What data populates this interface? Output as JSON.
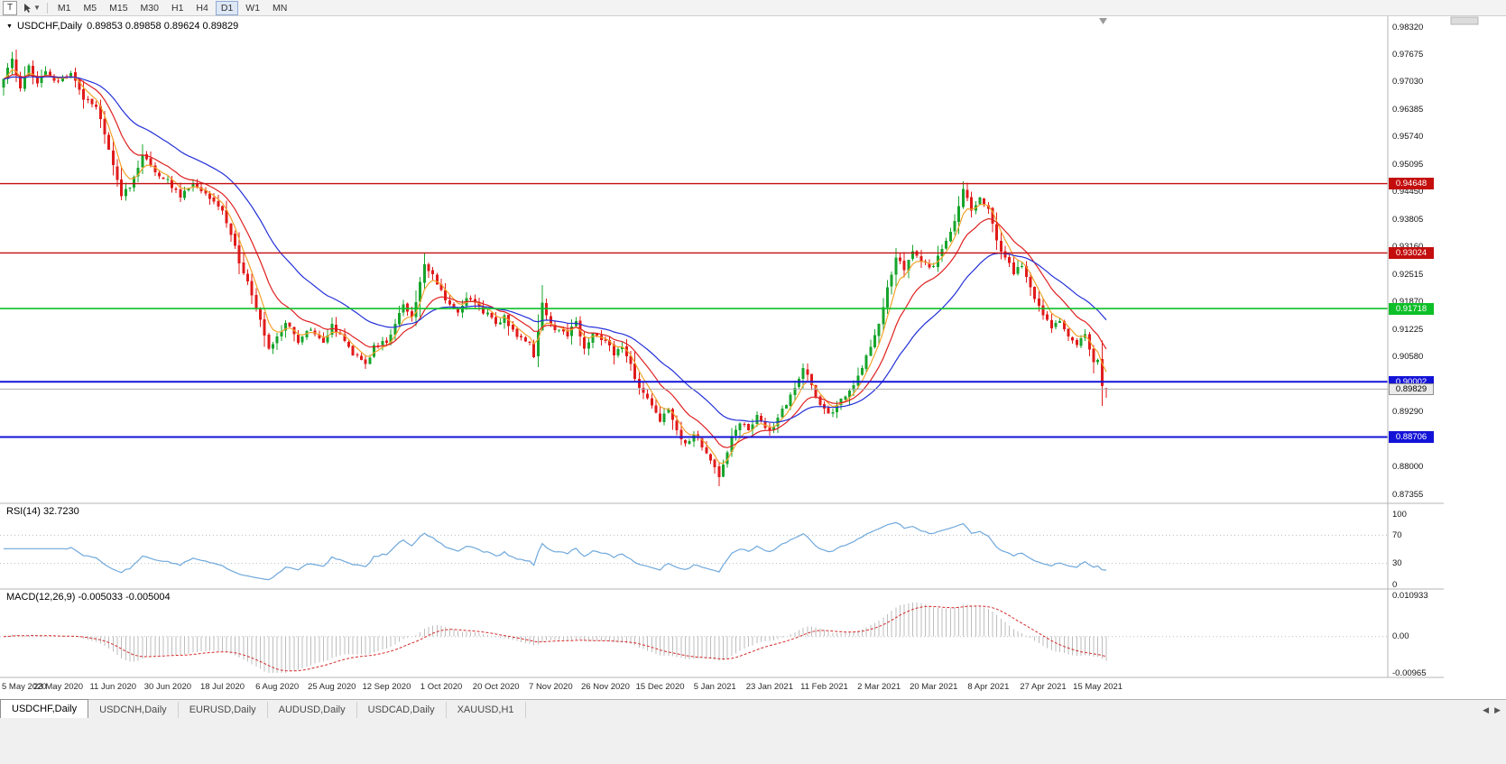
{
  "toolbar": {
    "t_button": "T",
    "dropdown_icon": "▼",
    "timeframes": [
      "M1",
      "M5",
      "M15",
      "M30",
      "H1",
      "H4",
      "D1",
      "W1",
      "MN"
    ],
    "active_timeframe": "D1"
  },
  "chart": {
    "collapse_icon": "▼",
    "symbol_timeframe": "USDCHF,Daily",
    "ohlc_text": "0.89853 0.89858 0.89624 0.89829",
    "price_axis_labels": [
      "0.98320",
      "0.97675",
      "0.97030",
      "0.96385",
      "0.95740",
      "0.95095",
      "0.94450",
      "0.93805",
      "0.93160",
      "0.92515",
      "0.91870",
      "0.91225",
      "0.90580",
      "0.89935",
      "0.89290",
      "0.88645",
      "0.88000",
      "0.87355"
    ],
    "current_price_label": "0.89829"
  },
  "rsi_panel": {
    "label": "RSI(14) 32.7230",
    "axis_labels": [
      "100",
      "70",
      "30",
      "0"
    ],
    "axis_values": [
      100,
      70,
      30,
      0
    ]
  },
  "macd_panel": {
    "label": "MACD(12,26,9) -0.005033 -0.005004",
    "axis_labels": [
      "0.010933",
      "0.00",
      "-0.00965"
    ],
    "axis_values": [
      0.010933,
      0,
      -0.00965
    ]
  },
  "tabs": [
    {
      "label": "USDCHF,Daily",
      "active": true
    },
    {
      "label": "USDCNH,Daily",
      "active": false
    },
    {
      "label": "EURUSD,Daily",
      "active": false
    },
    {
      "label": "AUDUSD,Daily",
      "active": false
    },
    {
      "label": "USDCAD,Daily",
      "active": false
    },
    {
      "label": "XAUUSD,H1",
      "active": false
    }
  ],
  "tab_scroll": {
    "left": "◀",
    "right": "▶"
  },
  "colors": {
    "up": "#17a42c",
    "down": "#e11b1b",
    "rsi_line": "#6fa8dc",
    "macd_hist": "#bdbdbd",
    "macd_signal": "#d42a2a",
    "separator": "#b5b5b5",
    "current_line": "#adadad",
    "dotted_level": "#bdbdbd"
  },
  "chart_data": {
    "type": "candlestick",
    "symbol": "USDCHF",
    "timeframe": "Daily",
    "ohlc_display": {
      "open": 0.89853,
      "high": 0.89858,
      "low": 0.89624,
      "close": 0.89829
    },
    "price_range": [
      0.87355,
      0.9832
    ],
    "num_candles": 263,
    "close_path_anchors": [
      [
        0,
        0.971
      ],
      [
        2,
        0.9758
      ],
      [
        4,
        0.9688
      ],
      [
        6,
        0.9742
      ],
      [
        8,
        0.97
      ],
      [
        10,
        0.9728
      ],
      [
        13,
        0.9706
      ],
      [
        16,
        0.9724
      ],
      [
        19,
        0.9662
      ],
      [
        22,
        0.9645
      ],
      [
        24,
        0.958
      ],
      [
        26,
        0.9508
      ],
      [
        28,
        0.9435
      ],
      [
        30,
        0.9455
      ],
      [
        33,
        0.9532
      ],
      [
        36,
        0.9492
      ],
      [
        39,
        0.9476
      ],
      [
        42,
        0.9432
      ],
      [
        45,
        0.9465
      ],
      [
        48,
        0.9442
      ],
      [
        52,
        0.9402
      ],
      [
        54,
        0.9345
      ],
      [
        57,
        0.9255
      ],
      [
        60,
        0.9172
      ],
      [
        63,
        0.9078
      ],
      [
        65,
        0.9106
      ],
      [
        67,
        0.9138
      ],
      [
        70,
        0.9092
      ],
      [
        73,
        0.9122
      ],
      [
        76,
        0.9092
      ],
      [
        78,
        0.9136
      ],
      [
        80,
        0.9112
      ],
      [
        83,
        0.9062
      ],
      [
        86,
        0.9042
      ],
      [
        88,
        0.9086
      ],
      [
        91,
        0.9092
      ],
      [
        93,
        0.9136
      ],
      [
        95,
        0.9182
      ],
      [
        97,
        0.9152
      ],
      [
        100,
        0.9276
      ],
      [
        102,
        0.9252
      ],
      [
        104,
        0.9216
      ],
      [
        106,
        0.9182
      ],
      [
        108,
        0.9162
      ],
      [
        110,
        0.9196
      ],
      [
        113,
        0.9176
      ],
      [
        117,
        0.9136
      ],
      [
        119,
        0.9156
      ],
      [
        122,
        0.9106
      ],
      [
        125,
        0.9092
      ],
      [
        126,
        0.9058
      ],
      [
        128,
        0.9186
      ],
      [
        130,
        0.9136
      ],
      [
        132,
        0.9122
      ],
      [
        134,
        0.9106
      ],
      [
        136,
        0.9142
      ],
      [
        138,
        0.9078
      ],
      [
        140,
        0.9116
      ],
      [
        143,
        0.9096
      ],
      [
        145,
        0.9062
      ],
      [
        147,
        0.9082
      ],
      [
        149,
        0.9042
      ],
      [
        151,
        0.8986
      ],
      [
        153,
        0.8962
      ],
      [
        156,
        0.8906
      ],
      [
        158,
        0.8936
      ],
      [
        160,
        0.8886
      ],
      [
        162,
        0.8856
      ],
      [
        164,
        0.8876
      ],
      [
        166,
        0.8846
      ],
      [
        168,
        0.8816
      ],
      [
        170,
        0.8776
      ],
      [
        171,
        0.8806
      ],
      [
        173,
        0.8872
      ],
      [
        175,
        0.8902
      ],
      [
        177,
        0.8886
      ],
      [
        179,
        0.8922
      ],
      [
        182,
        0.8886
      ],
      [
        184,
        0.8916
      ],
      [
        186,
        0.8946
      ],
      [
        188,
        0.8986
      ],
      [
        190,
        0.9032
      ],
      [
        192,
        0.8992
      ],
      [
        194,
        0.8946
      ],
      [
        196,
        0.8926
      ],
      [
        198,
        0.8946
      ],
      [
        200,
        0.8966
      ],
      [
        202,
        0.8992
      ],
      [
        204,
        0.9032
      ],
      [
        206,
        0.9082
      ],
      [
        208,
        0.9136
      ],
      [
        210,
        0.9222
      ],
      [
        212,
        0.9292
      ],
      [
        214,
        0.9262
      ],
      [
        216,
        0.9306
      ],
      [
        218,
        0.9282
      ],
      [
        221,
        0.9272
      ],
      [
        223,
        0.9312
      ],
      [
        225,
        0.9352
      ],
      [
        227,
        0.9412
      ],
      [
        228,
        0.9452
      ],
      [
        230,
        0.9402
      ],
      [
        232,
        0.9432
      ],
      [
        234,
        0.9406
      ],
      [
        236,
        0.9332
      ],
      [
        238,
        0.9292
      ],
      [
        240,
        0.9252
      ],
      [
        242,
        0.9272
      ],
      [
        244,
        0.9222
      ],
      [
        247,
        0.9156
      ],
      [
        249,
        0.9126
      ],
      [
        251,
        0.9142
      ],
      [
        253,
        0.9106
      ],
      [
        255,
        0.9086
      ],
      [
        257,
        0.9112
      ],
      [
        258,
        0.9076
      ],
      [
        259,
        0.9046
      ],
      [
        260,
        0.9052
      ],
      [
        261,
        0.899
      ],
      [
        262,
        0.89829
      ]
    ],
    "special_candles": [
      {
        "i": 2,
        "high": 0.9774
      },
      {
        "i": 100,
        "high": 0.9296
      },
      {
        "i": 170,
        "low": 0.8757
      },
      {
        "i": 228,
        "high": 0.94648
      }
    ],
    "horizontal_lines": [
      {
        "price": 0.94648,
        "label": "0.94648",
        "color": "#c40e0e",
        "width": 1.4
      },
      {
        "price": 0.93024,
        "label": "0.93024",
        "color": "#c40e0e",
        "width": 1.4
      },
      {
        "price": 0.91718,
        "label": "0.91718",
        "color": "#0dbf28",
        "width": 1.6
      },
      {
        "price": 0.90002,
        "label": "0.90002",
        "color": "#1313d8",
        "width": 2
      },
      {
        "price": 0.88706,
        "label": "0.88706",
        "color": "#1313d8",
        "width": 2
      }
    ],
    "current_price": 0.89829,
    "moving_averages": [
      {
        "name": "fast",
        "period": 5,
        "color": "#f2a22b"
      },
      {
        "name": "medium",
        "period": 13,
        "color": "#e02020"
      },
      {
        "name": "slow",
        "period": 30,
        "color": "#2330d8"
      }
    ],
    "indicators": {
      "rsi": {
        "period": 14,
        "value": 32.723,
        "levels": [
          100,
          70,
          30,
          0
        ]
      },
      "macd": {
        "fast": 12,
        "slow": 26,
        "signal": 9,
        "values": [
          -0.005033,
          -0.005004
        ],
        "axis_range": [
          0.010933,
          -0.00965
        ]
      }
    },
    "x_axis": {
      "candles_per_label": 13,
      "labels": [
        "5 May 2020",
        "23 May 2020",
        "11 Jun 2020",
        "30 Jun 2020",
        "18 Jul 2020",
        "6 Aug 2020",
        "25 Aug 2020",
        "12 Sep 2020",
        "1 Oct 2020",
        "20 Oct 2020",
        "7 Nov 2020",
        "26 Nov 2020",
        "15 Dec 2020",
        "5 Jan 2021",
        "23 Jan 2021",
        "11 Feb 2021",
        "2 Mar 2021",
        "20 Mar 2021",
        "8 Apr 2021",
        "27 Apr 2021",
        "15 May 2021"
      ]
    }
  }
}
